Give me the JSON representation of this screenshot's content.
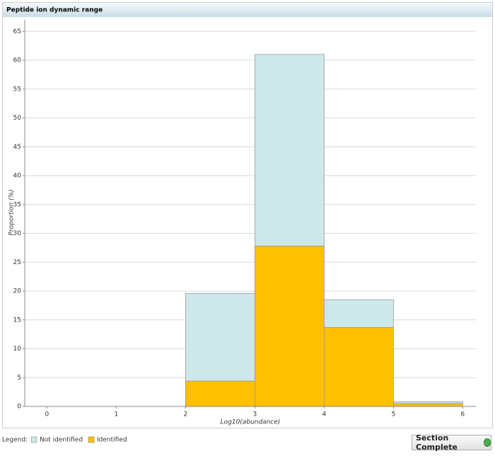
{
  "chart_data": {
    "type": "histogram",
    "title": "Peptide ion dynamic range",
    "x_label": "Log10(abundance)",
    "y_label": "Proportion (%)",
    "bins": [
      0,
      1,
      2,
      3,
      4,
      5,
      6
    ],
    "series": [
      {
        "name": "Not identified",
        "color": "#cde8e8",
        "values": [
          0,
          0,
          15.2,
          33.2,
          4.8,
          0.3
        ]
      },
      {
        "name": "Identified",
        "color": "#ffc000",
        "values": [
          0,
          0,
          4.4,
          27.8,
          13.7,
          0.5
        ]
      }
    ],
    "stacked": true,
    "xlim": [
      -0.32,
      6.19
    ],
    "xticks": [
      0,
      1,
      2,
      3,
      4,
      5,
      6
    ],
    "ylim": [
      0,
      67
    ],
    "yticks": [
      0,
      5,
      10,
      15,
      20,
      25,
      30,
      35,
      40,
      45,
      50,
      55,
      60,
      65
    ],
    "grid": true,
    "legend_title": "Legend:",
    "legend_position": "bottom-left"
  },
  "button": "Section Complete"
}
